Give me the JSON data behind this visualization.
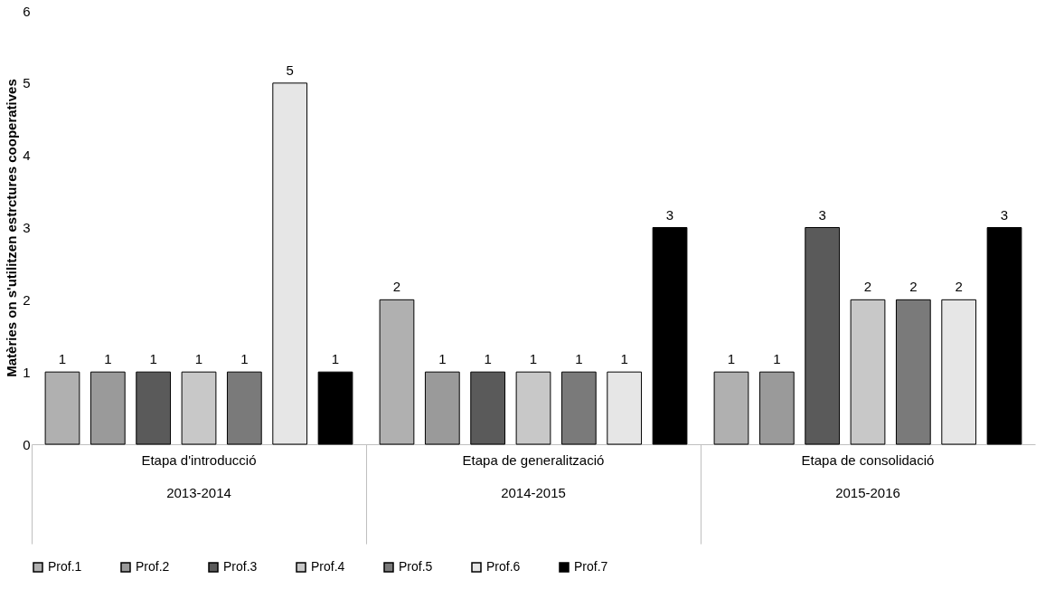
{
  "chart_data": {
    "type": "bar",
    "ylabel": "Matèries on s'utilitzen estrctures cooperatives",
    "categories": [
      "Etapa d'introducció\n2013-2014",
      "Etapa de generalització\n2014-2015",
      "Etapa de consolidació\n2015-2016"
    ],
    "series": [
      {
        "name": "Prof.1",
        "color": "#b0b0b0",
        "values": [
          1,
          2,
          1
        ]
      },
      {
        "name": "Prof.2",
        "color": "#9a9a9a",
        "values": [
          1,
          1,
          1
        ]
      },
      {
        "name": "Prof.3",
        "color": "#5a5a5a",
        "values": [
          1,
          1,
          3
        ]
      },
      {
        "name": "Prof.4",
        "color": "#c8c8c8",
        "values": [
          1,
          1,
          2
        ]
      },
      {
        "name": "Prof.5",
        "color": "#7a7a7a",
        "values": [
          1,
          1,
          2
        ]
      },
      {
        "name": "Prof.6",
        "color": "#e6e6e6",
        "values": [
          5,
          1,
          2
        ]
      },
      {
        "name": "Prof.7",
        "color": "#000000",
        "values": [
          1,
          3,
          3
        ]
      }
    ],
    "ylim": [
      0,
      6
    ],
    "yticks": [
      0,
      1,
      2,
      3,
      4,
      5,
      6
    ],
    "grid": false,
    "legend": "bottom",
    "data_labels": true
  }
}
